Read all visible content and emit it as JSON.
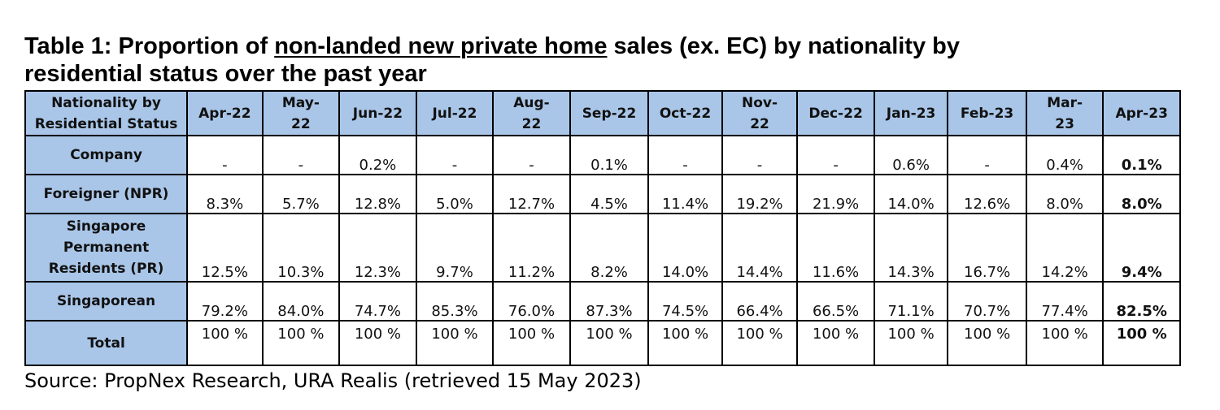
{
  "title": {
    "prefix": "Table 1: Proportion of ",
    "underlined": "non-landed new private home",
    "suffix_line1": " sales (ex. EC) by nationality by",
    "line2": "residential status over the past year"
  },
  "table": {
    "corner_header": "Nationality by Residential Status",
    "months": [
      "Apr-22",
      "May-22",
      "Jun-22",
      "Jul-22",
      "Aug-22",
      "Sep-22",
      "Oct-22",
      "Nov-22",
      "Dec-22",
      "Jan-23",
      "Feb-23",
      "Mar-23",
      "Apr-23"
    ],
    "rows": [
      {
        "label": "Company",
        "values": [
          "-",
          "-",
          "0.2%",
          "-",
          "-",
          "0.1%",
          "-",
          "-",
          "-",
          "0.6%",
          "-",
          "0.4%",
          "0.1%"
        ]
      },
      {
        "label": "Foreigner (NPR)",
        "values": [
          "8.3%",
          "5.7%",
          "12.8%",
          "5.0%",
          "12.7%",
          "4.5%",
          "11.4%",
          "19.2%",
          "21.9%",
          "14.0%",
          "12.6%",
          "8.0%",
          "8.0%"
        ]
      },
      {
        "label": "Singapore Permanent Residents (PR)",
        "values": [
          "12.5%",
          "10.3%",
          "12.3%",
          "9.7%",
          "11.2%",
          "8.2%",
          "14.0%",
          "14.4%",
          "11.6%",
          "14.3%",
          "16.7%",
          "14.2%",
          "9.4%"
        ]
      },
      {
        "label": "Singaporean",
        "values": [
          "79.2%",
          "84.0%",
          "74.7%",
          "85.3%",
          "76.0%",
          "87.3%",
          "74.5%",
          "66.4%",
          "66.5%",
          "71.1%",
          "70.7%",
          "77.4%",
          "82.5%"
        ]
      },
      {
        "label": "Total",
        "values": [
          "100 %",
          "100 %",
          "100 %",
          "100 %",
          "100 %",
          "100 %",
          "100 %",
          "100 %",
          "100 %",
          "100 %",
          "100 %",
          "100 %",
          "100 %"
        ]
      }
    ]
  },
  "source": "Source: PropNex Research, URA Realis (retrieved 15 May 2023)",
  "colors": {
    "header_bg": "#a9c6e8",
    "border": "#000000"
  }
}
